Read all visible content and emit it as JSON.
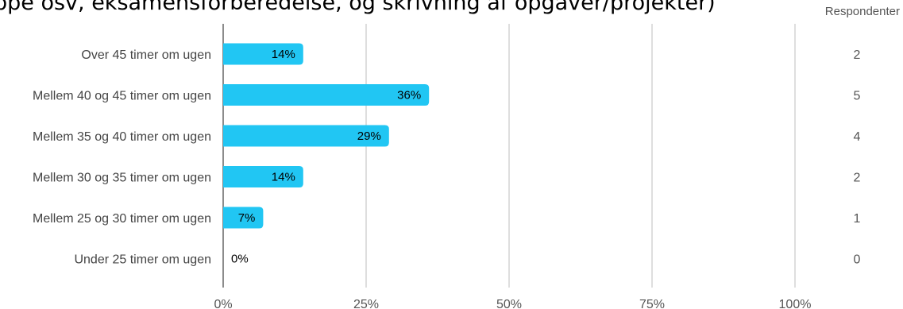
{
  "title": "ppe osv, eksamensforberedelse, og skrivning af opgaver/projekter)",
  "respondents_header": "Respondenter",
  "chart_data": {
    "type": "bar",
    "orientation": "horizontal",
    "categories": [
      "Over 45 timer om ugen",
      "Mellem 40 og 45 timer om ugen",
      "Mellem 35 og 40 timer om ugen",
      "Mellem 30 og 35 timer om ugen",
      "Mellem 25 og 30 timer om ugen",
      "Under 25 timer om ugen"
    ],
    "values": [
      14,
      36,
      29,
      14,
      7,
      0
    ],
    "value_labels": [
      "14%",
      "36%",
      "29%",
      "14%",
      "7%",
      "0%"
    ],
    "respondents": [
      2,
      5,
      4,
      2,
      1,
      0
    ],
    "xlim": [
      0,
      100
    ],
    "xticks": [
      0,
      25,
      50,
      75,
      100
    ],
    "xtick_labels": [
      "0%",
      "25%",
      "50%",
      "75%",
      "100%"
    ],
    "grid": true,
    "bar_color": "#21c6f3"
  }
}
